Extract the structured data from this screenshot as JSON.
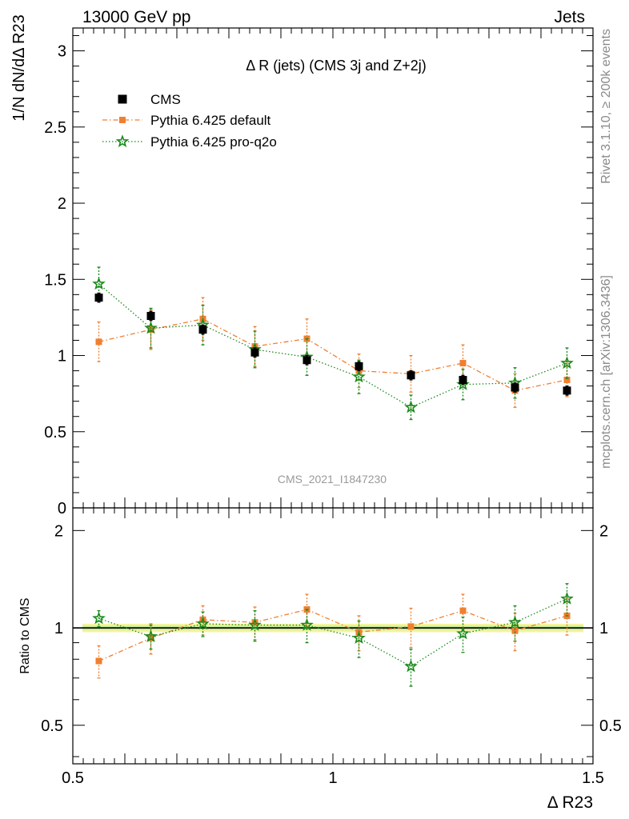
{
  "header": {
    "left": "13000 GeV pp",
    "right": "Jets"
  },
  "side": {
    "rivet": "Rivet 3.1.10, ≥ 200k events",
    "mcplots": "mcplots.cern.ch [arXiv:1306.3436]"
  },
  "chart_data": {
    "type": "scatter",
    "title": "Δ R (jets) (CMS 3j and Z+2j)",
    "analysis_id": "CMS_2021_I1847230",
    "xlabel": "Δ R23",
    "ylabel": "1/N dN/dΔ R23",
    "ratio_ylabel": "Ratio to CMS",
    "xlim": [
      0.5,
      1.5
    ],
    "ylim": [
      0,
      3.15
    ],
    "ratio_ylim": [
      0.38,
      2.35
    ],
    "ratio_scale": "log",
    "x_ticks": [
      "0.5",
      "1",
      "1.5"
    ],
    "y_ticks": [
      "0",
      "0.5",
      "1",
      "1.5",
      "2",
      "2.5",
      "3"
    ],
    "ratio_ticks": [
      "0.5",
      "1",
      "2"
    ],
    "legend_position": "top-left",
    "x": [
      0.55,
      0.65,
      0.75,
      0.85,
      0.95,
      1.05,
      1.15,
      1.25,
      1.35,
      1.45
    ],
    "series": [
      {
        "name": "CMS",
        "color": "#000000",
        "marker": "square",
        "values": [
          1.38,
          1.26,
          1.17,
          1.02,
          0.97,
          0.93,
          0.87,
          0.84,
          0.79,
          0.77
        ],
        "errors": [
          0.03,
          0.03,
          0.03,
          0.03,
          0.03,
          0.03,
          0.03,
          0.03,
          0.03,
          0.03
        ]
      },
      {
        "name": "Pythia 6.425 default",
        "color": "#f07f30",
        "marker": "square",
        "line": "dashdot",
        "values": [
          1.09,
          1.17,
          1.24,
          1.06,
          1.11,
          0.9,
          0.88,
          0.95,
          0.77,
          0.84
        ],
        "errors": [
          0.13,
          0.13,
          0.14,
          0.13,
          0.13,
          0.11,
          0.12,
          0.12,
          0.11,
          0.11
        ],
        "ratio": [
          0.79,
          0.93,
          1.06,
          1.04,
          1.14,
          0.97,
          1.01,
          1.13,
          0.98,
          1.09
        ],
        "ratio_errors": [
          0.09,
          0.1,
          0.11,
          0.12,
          0.13,
          0.12,
          0.14,
          0.14,
          0.13,
          0.14
        ]
      },
      {
        "name": "Pythia 6.425 pro-q2o",
        "color": "#1a8a1a",
        "marker": "star",
        "line": "dotted",
        "values": [
          1.47,
          1.18,
          1.2,
          1.04,
          0.99,
          0.86,
          0.66,
          0.81,
          0.82,
          0.95
        ],
        "errors": [
          0.11,
          0.13,
          0.13,
          0.12,
          0.12,
          0.11,
          0.08,
          0.1,
          0.1,
          0.1
        ],
        "ratio": [
          1.07,
          0.94,
          1.03,
          1.02,
          1.02,
          0.93,
          0.76,
          0.96,
          1.04,
          1.23
        ],
        "ratio_errors": [
          0.06,
          0.08,
          0.09,
          0.11,
          0.12,
          0.12,
          0.1,
          0.12,
          0.13,
          0.14
        ]
      }
    ]
  }
}
